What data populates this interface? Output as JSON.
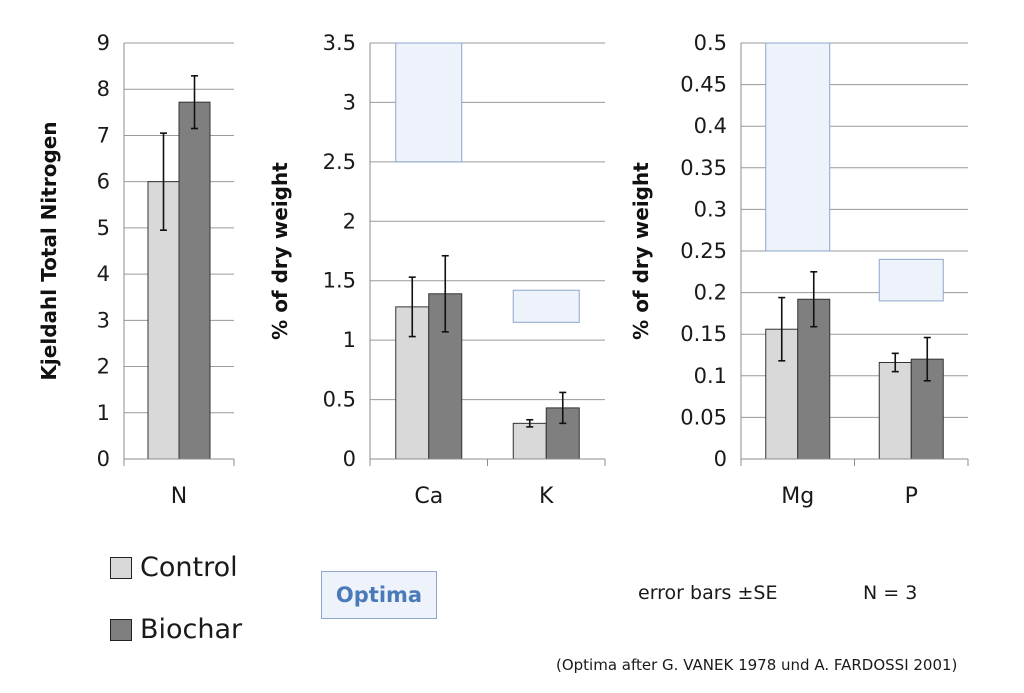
{
  "legend": {
    "control_label": "Control",
    "biochar_label": "Biochar",
    "optima_label": "Optima",
    "colors": {
      "control": "#d9d9d9",
      "biochar": "#7f7f7f",
      "optima_fill": "#eef2fa",
      "optima_stroke": "#8ea6cc"
    }
  },
  "notes": {
    "error_bars": "error bars ±SE",
    "n": "N = 3",
    "source": "(Optima after G. VANEK 1978 und A. FARDOSSI 2001)"
  },
  "chart_data": [
    {
      "type": "bar",
      "title": "",
      "xlabel": "",
      "ylabel": "Kjeldahl Total Nitrogen",
      "ylim": [
        0,
        9
      ],
      "yticks": [
        "0",
        "1",
        "2",
        "3",
        "4",
        "5",
        "6",
        "7",
        "8",
        "9"
      ],
      "categories": [
        "N"
      ],
      "series": [
        {
          "name": "Control",
          "values": [
            6.0
          ],
          "errors": [
            1.05
          ]
        },
        {
          "name": "Biochar",
          "values": [
            7.72
          ],
          "errors": [
            0.57
          ]
        }
      ],
      "optima": [],
      "grid": true
    },
    {
      "type": "bar",
      "title": "",
      "xlabel": "",
      "ylabel": "% of dry weight",
      "ylim": [
        0,
        3.5
      ],
      "yticks": [
        "0",
        "0.5",
        "1",
        "1.5",
        "2",
        "2.5",
        "3",
        "3.5"
      ],
      "categories": [
        "Ca",
        "K"
      ],
      "series": [
        {
          "name": "Control",
          "values": [
            1.28,
            0.3
          ],
          "errors": [
            0.25,
            0.03
          ]
        },
        {
          "name": "Biochar",
          "values": [
            1.39,
            0.43
          ],
          "errors": [
            0.32,
            0.13
          ]
        }
      ],
      "optima": [
        {
          "category": "Ca",
          "range": [
            2.5,
            3.5
          ]
        },
        {
          "category": "K",
          "range": [
            1.15,
            1.42
          ]
        }
      ],
      "grid": true
    },
    {
      "type": "bar",
      "title": "",
      "xlabel": "",
      "ylabel": "% of dry weight",
      "ylim": [
        0,
        0.5
      ],
      "yticks": [
        "0",
        "0.05",
        "0.1",
        "0.15",
        "0.2",
        "0.25",
        "0.3",
        "0.35",
        "0.4",
        "0.45",
        "0.5"
      ],
      "categories": [
        "Mg",
        "P"
      ],
      "series": [
        {
          "name": "Control",
          "values": [
            0.156,
            0.116
          ],
          "errors": [
            0.038,
            0.011
          ]
        },
        {
          "name": "Biochar",
          "values": [
            0.192,
            0.12
          ],
          "errors": [
            0.033,
            0.026
          ]
        }
      ],
      "optima": [
        {
          "category": "Mg",
          "range": [
            0.25,
            0.5
          ]
        },
        {
          "category": "P",
          "range": [
            0.19,
            0.24
          ]
        }
      ],
      "grid": true
    }
  ]
}
